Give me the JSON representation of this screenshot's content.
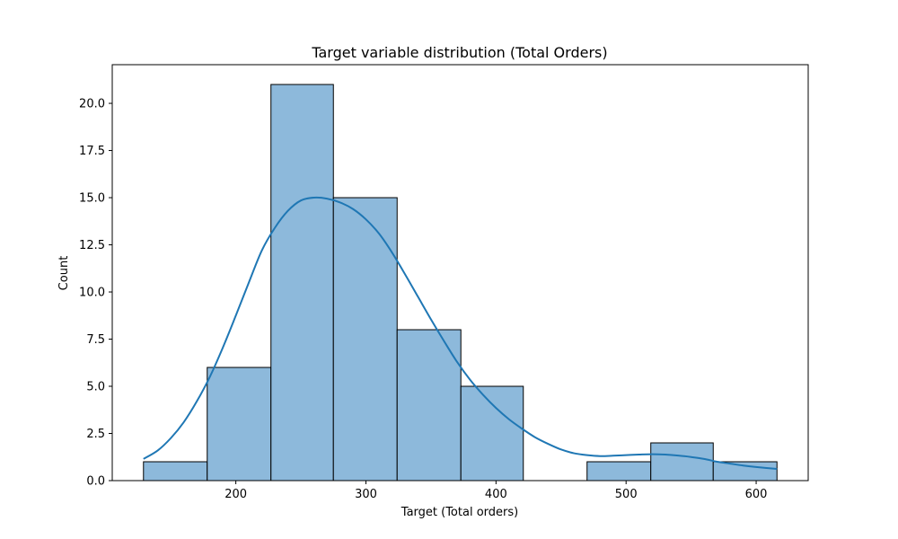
{
  "chart_data": {
    "type": "bar",
    "subtype": "histogram with kde",
    "title": "Target variable distribution (Total Orders)",
    "xlabel": "Target (Total orders)",
    "ylabel": "Count",
    "xlim": [
      105,
      640
    ],
    "ylim": [
      0,
      22.05
    ],
    "xticks": [
      200,
      300,
      400,
      500,
      600
    ],
    "yticks": [
      0.0,
      2.5,
      5.0,
      7.5,
      10.0,
      12.5,
      15.0,
      17.5,
      20.0
    ],
    "xtick_labels": [
      "200",
      "300",
      "400",
      "500",
      "600"
    ],
    "ytick_labels": [
      "0.0",
      "2.5",
      "5.0",
      "7.5",
      "10.0",
      "12.5",
      "15.0",
      "17.5",
      "20.0"
    ],
    "grid": false,
    "bar_color": "#8db9db",
    "bar_edge_color": "#000000",
    "line_color": "#1f77b4",
    "bins": [
      {
        "x0": 129,
        "x1": 178,
        "count": 1
      },
      {
        "x0": 178,
        "x1": 227,
        "count": 6
      },
      {
        "x0": 227,
        "x1": 275,
        "count": 21
      },
      {
        "x0": 275,
        "x1": 324,
        "count": 15
      },
      {
        "x0": 324,
        "x1": 373,
        "count": 8
      },
      {
        "x0": 373,
        "x1": 421,
        "count": 5
      },
      {
        "x0": 421,
        "x1": 470,
        "count": 0
      },
      {
        "x0": 470,
        "x1": 519,
        "count": 1
      },
      {
        "x0": 519,
        "x1": 567,
        "count": 2
      },
      {
        "x0": 567,
        "x1": 616,
        "count": 1
      }
    ],
    "kde": {
      "x": [
        129,
        140,
        150,
        160,
        170,
        180,
        190,
        200,
        210,
        220,
        230,
        240,
        250,
        260,
        270,
        280,
        290,
        300,
        310,
        320,
        330,
        340,
        350,
        360,
        370,
        380,
        390,
        400,
        410,
        420,
        430,
        440,
        450,
        460,
        470,
        480,
        490,
        500,
        510,
        520,
        530,
        540,
        550,
        560,
        570,
        580,
        590,
        600,
        616
      ],
      "y": [
        1.15,
        1.6,
        2.25,
        3.1,
        4.2,
        5.5,
        7.05,
        8.75,
        10.5,
        12.2,
        13.4,
        14.3,
        14.85,
        15.0,
        14.95,
        14.75,
        14.4,
        13.85,
        13.1,
        12.1,
        10.95,
        9.75,
        8.55,
        7.4,
        6.3,
        5.35,
        4.55,
        3.85,
        3.25,
        2.75,
        2.3,
        1.95,
        1.65,
        1.45,
        1.35,
        1.3,
        1.32,
        1.35,
        1.38,
        1.4,
        1.38,
        1.33,
        1.25,
        1.15,
        1.0,
        0.9,
        0.8,
        0.72,
        0.62
      ]
    }
  }
}
